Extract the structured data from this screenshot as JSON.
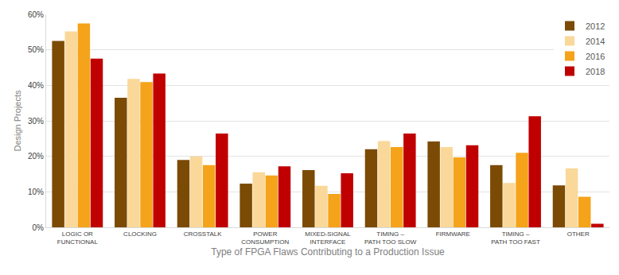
{
  "chart_data": {
    "type": "bar",
    "x_label": "Type of FPGA Flaws Contributing to a Production Issue",
    "y_label": "Design Projects",
    "categories": [
      "LOGIC OR FUNCTIONAL",
      "CLOCKING",
      "CROSSTALK",
      "POWER CONSUMPTION",
      "MIXED-SIGNAL INTERFACE",
      "TIMING – PATH TOO SLOW",
      "FIRMWARE",
      "TIMING – PATH TOO FAST",
      "OTHER"
    ],
    "series": [
      {
        "name": "2012",
        "color": "#7b4a04",
        "values": [
          52.5,
          36.5,
          19,
          12.3,
          16.1,
          22,
          24.2,
          17.5,
          11.8
        ]
      },
      {
        "name": "2014",
        "color": "#fad89a",
        "values": [
          55.2,
          41.8,
          20,
          15.5,
          11.7,
          24.3,
          22.6,
          12.5,
          16.6
        ]
      },
      {
        "name": "2016",
        "color": "#f5a31a",
        "values": [
          57.4,
          40.9,
          17.5,
          14.6,
          9.4,
          22.6,
          19.7,
          21,
          8.6
        ]
      },
      {
        "name": "2018",
        "color": "#c00000",
        "values": [
          47.5,
          43.3,
          26.4,
          17.2,
          15.2,
          26.4,
          23.1,
          31.3,
          1
        ]
      }
    ],
    "ylim": [
      0,
      60
    ],
    "yticks": [
      {
        "value": 0,
        "label": "0%"
      },
      {
        "value": 10,
        "label": "10%"
      },
      {
        "value": 20,
        "label": "20%"
      },
      {
        "value": 30,
        "label": "30%"
      },
      {
        "value": 40,
        "label": "40%"
      },
      {
        "value": 50,
        "label": "50%"
      },
      {
        "value": 60,
        "label": "60%"
      }
    ],
    "grid": true,
    "legend": "top right"
  }
}
